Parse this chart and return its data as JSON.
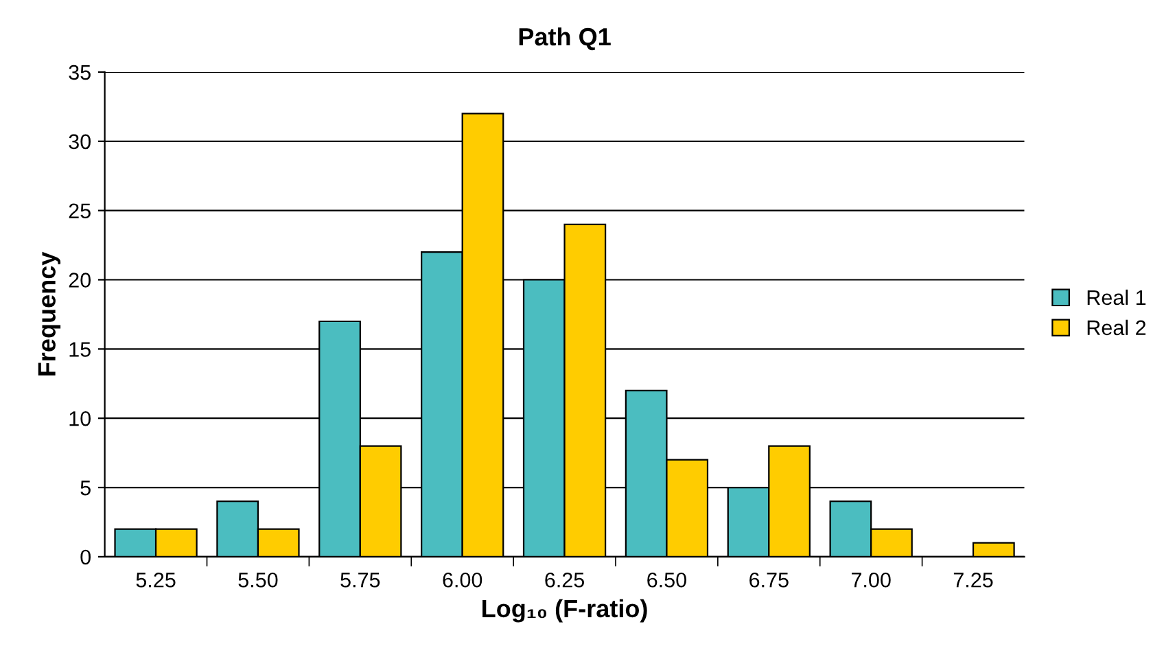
{
  "chart_data": {
    "type": "bar",
    "title": "Path Q1",
    "xlabel": "Log₁₀ (F-ratio)",
    "ylabel": "Frequency",
    "categories": [
      "5.25",
      "5.50",
      "5.75",
      "6.00",
      "6.25",
      "6.50",
      "6.75",
      "7.00",
      "7.25"
    ],
    "series": [
      {
        "name": "Real 1",
        "color": "#4bbdc0",
        "values": [
          2,
          4,
          17,
          22,
          20,
          12,
          5,
          4,
          null
        ]
      },
      {
        "name": "Real 2",
        "color": "#ffcc00",
        "values": [
          2,
          2,
          8,
          32,
          24,
          7,
          8,
          2,
          1
        ]
      }
    ],
    "ylim": [
      0,
      35
    ],
    "yticks": [
      0,
      5,
      10,
      15,
      20,
      25,
      30,
      35
    ],
    "grid": "y",
    "legend": "right"
  }
}
